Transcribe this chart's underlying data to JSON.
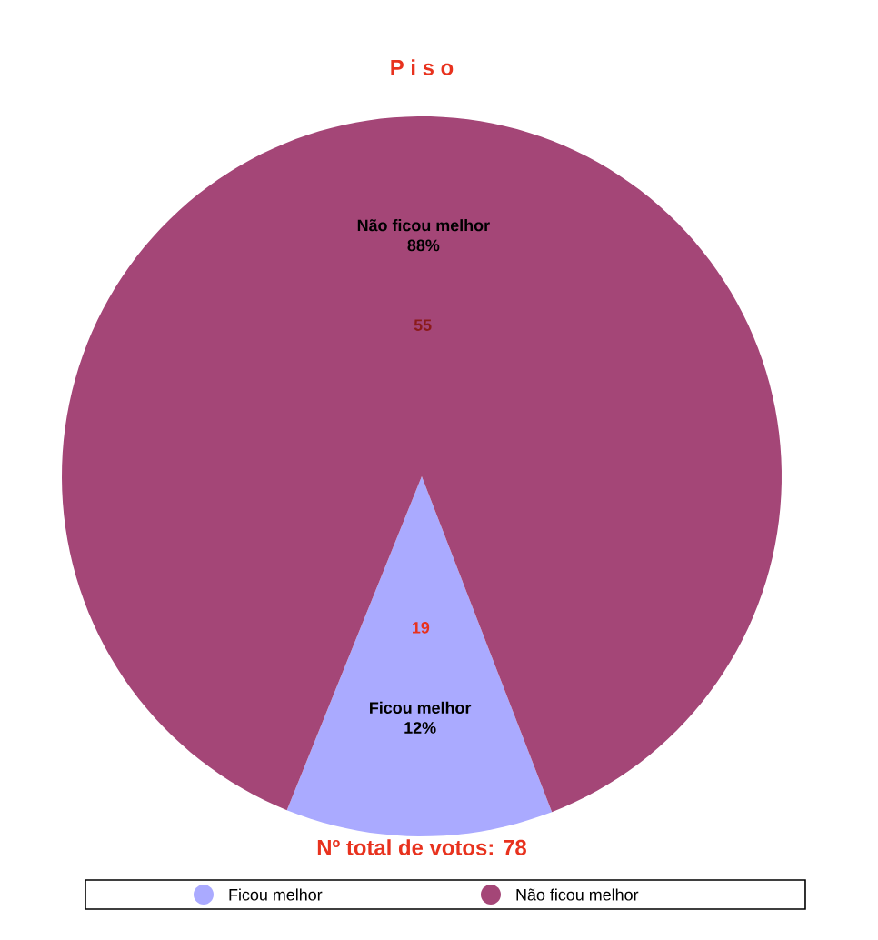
{
  "chart_data": {
    "type": "pie",
    "title": "P i s o",
    "categories": [
      "Ficou melhor",
      "Não ficou melhor"
    ],
    "values": [
      12,
      88
    ],
    "value_labels": [
      "12%",
      "88%"
    ],
    "colors": [
      "#aaaaff",
      "#a44677"
    ],
    "annotations": [
      {
        "text": "19",
        "x": "Ficou melhor"
      },
      {
        "text": "55",
        "x": "Não ficou melhor"
      },
      "Nº total de votos: 78"
    ],
    "legend": "bottom"
  }
}
